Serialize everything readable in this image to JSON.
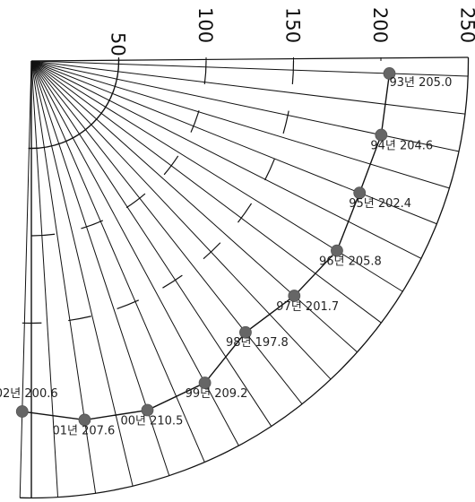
{
  "chart_data": {
    "type": "radial",
    "title": "",
    "subtitle": "",
    "radial_range": [
      0,
      250
    ],
    "radial_ticks": [
      {
        "value": 50,
        "label": "50"
      },
      {
        "value": 100,
        "label": "100"
      },
      {
        "value": 150,
        "label": "150"
      },
      {
        "value": 200,
        "label": "200"
      },
      {
        "value": 250,
        "label": "250"
      }
    ],
    "points": [
      {
        "year": "93년",
        "value": 205.0,
        "label": "93년 205.0"
      },
      {
        "year": "94년",
        "value": 204.6,
        "label": "94년 204.6"
      },
      {
        "year": "95년",
        "value": 202.4,
        "label": "95년 202.4"
      },
      {
        "year": "96년",
        "value": 205.8,
        "label": "96년 205.8"
      },
      {
        "year": "97년",
        "value": 201.7,
        "label": "97년 201.7"
      },
      {
        "year": "98년",
        "value": 197.8,
        "label": "98년 197.8"
      },
      {
        "year": "99년",
        "value": 209.2,
        "label": "99년 209.2"
      },
      {
        "year": "00년",
        "value": 210.5,
        "label": "00년 210.5"
      },
      {
        "year": "01년",
        "value": 207.6,
        "label": "01년 207.6"
      },
      {
        "year": "02년",
        "value": 200.6,
        "label": "02년 200.6"
      }
    ],
    "colors": {
      "line": "#111111",
      "marker": "#666666"
    }
  }
}
